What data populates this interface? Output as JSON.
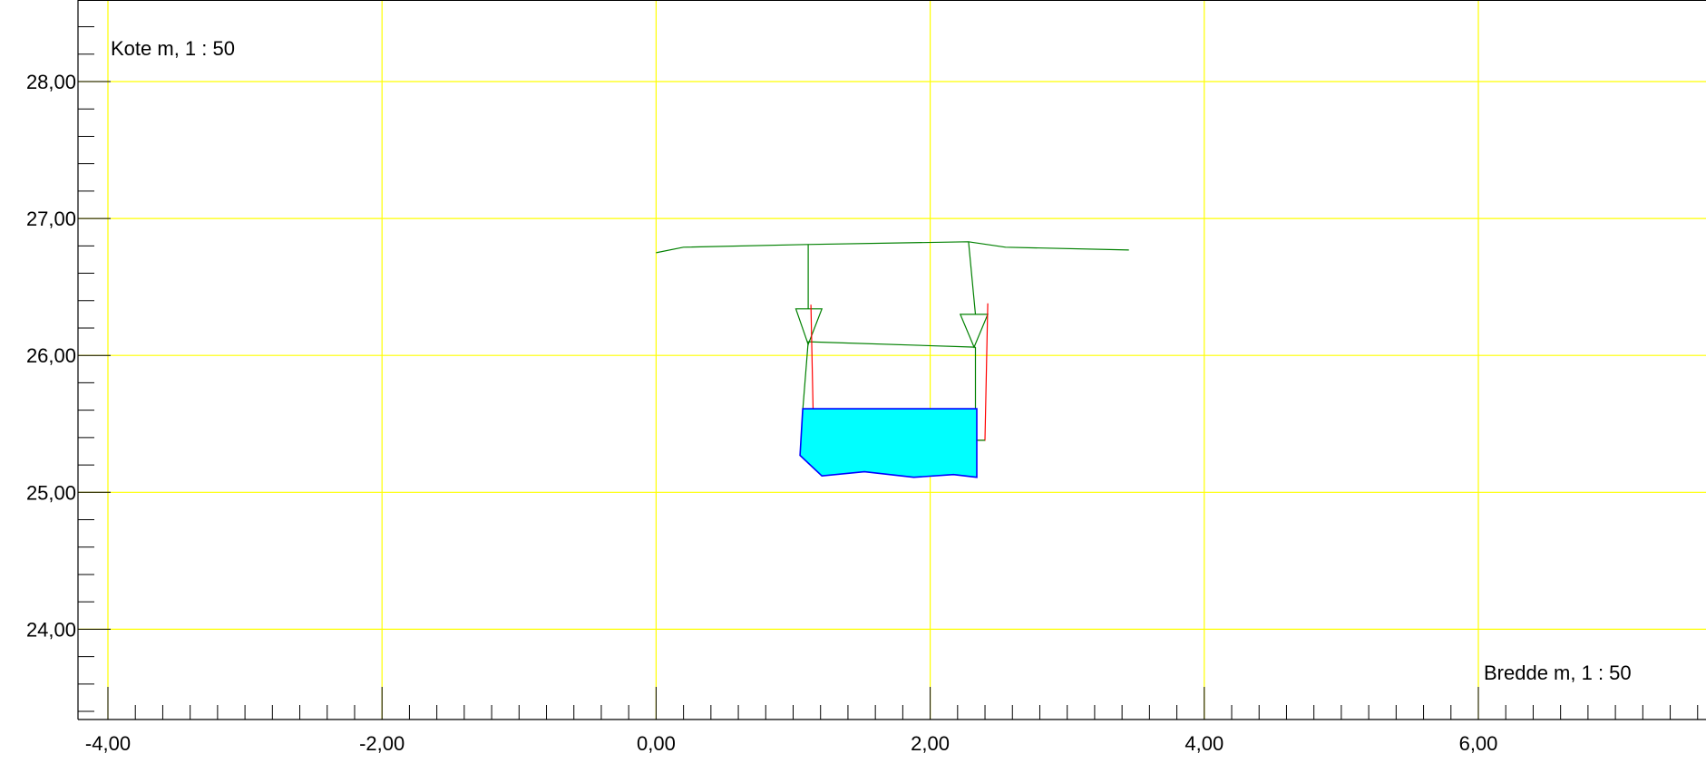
{
  "chart_data": {
    "type": "line",
    "xlabel": "Bredde m, 1 : 50",
    "ylabel": "Kote m, 1 : 50",
    "xlim": [
      -4.0,
      7.6
    ],
    "ylim": [
      23.4,
      28.6
    ],
    "grid": true,
    "x_ticks": [
      "-4,00",
      "-2,00",
      "0,00",
      "2,00",
      "4,00",
      "6,00"
    ],
    "x_tick_values": [
      -4,
      -2,
      0,
      2,
      4,
      6
    ],
    "y_ticks": [
      "28,00",
      "27,00",
      "26,00",
      "25,00",
      "24,00"
    ],
    "y_tick_values": [
      28,
      27,
      26,
      25,
      24
    ],
    "colors": {
      "grid": "#ffff00",
      "terrain": "#008000",
      "red_outline": "#ff0000",
      "water_fill": "#00ffff",
      "water_edge": "#0000ff",
      "axis": "#000000"
    },
    "series": [
      {
        "kind": "polyline",
        "color": "terrain",
        "points": [
          [
            0.0,
            26.75
          ],
          [
            0.2,
            26.79
          ],
          [
            1.1,
            26.81
          ],
          [
            2.28,
            26.83
          ],
          [
            2.55,
            26.79
          ],
          [
            3.45,
            26.77
          ]
        ]
      },
      {
        "kind": "polyline",
        "color": "terrain",
        "points": [
          [
            1.11,
            26.81
          ],
          [
            1.11,
            26.34
          ]
        ]
      },
      {
        "kind": "polyline",
        "color": "terrain",
        "points": [
          [
            2.28,
            26.83
          ],
          [
            2.33,
            26.3
          ]
        ]
      },
      {
        "kind": "polyline",
        "color": "terrain",
        "points": [
          [
            1.1,
            26.1
          ],
          [
            2.33,
            26.06
          ]
        ]
      },
      {
        "kind": "polyline",
        "color": "terrain",
        "points": [
          [
            1.11,
            26.1
          ],
          [
            1.07,
            25.6
          ]
        ]
      },
      {
        "kind": "polyline",
        "color": "terrain",
        "points": [
          [
            2.33,
            26.06
          ],
          [
            2.33,
            25.6
          ]
        ]
      },
      {
        "kind": "polygon",
        "color": "terrain",
        "points": [
          [
            1.02,
            26.34
          ],
          [
            1.21,
            26.34
          ],
          [
            1.11,
            26.08
          ]
        ]
      },
      {
        "kind": "polygon",
        "color": "terrain",
        "points": [
          [
            2.22,
            26.3
          ],
          [
            2.42,
            26.3
          ],
          [
            2.32,
            26.06
          ]
        ]
      },
      {
        "kind": "polyline",
        "color": "red_outline",
        "points": [
          [
            1.13,
            26.37
          ],
          [
            1.15,
            25.38
          ],
          [
            2.4,
            25.38
          ],
          [
            2.42,
            26.38
          ]
        ]
      },
      {
        "kind": "polyline",
        "color": "terrain",
        "points": [
          [
            1.08,
            25.38
          ],
          [
            2.4,
            25.38
          ]
        ]
      },
      {
        "kind": "water",
        "fill": "water_fill",
        "stroke": "water_edge",
        "points": [
          [
            1.07,
            25.61
          ],
          [
            2.34,
            25.61
          ],
          [
            2.34,
            25.11
          ],
          [
            2.17,
            25.13
          ],
          [
            1.88,
            25.11
          ],
          [
            1.52,
            25.15
          ],
          [
            1.21,
            25.12
          ],
          [
            1.05,
            25.27
          ]
        ]
      }
    ]
  }
}
